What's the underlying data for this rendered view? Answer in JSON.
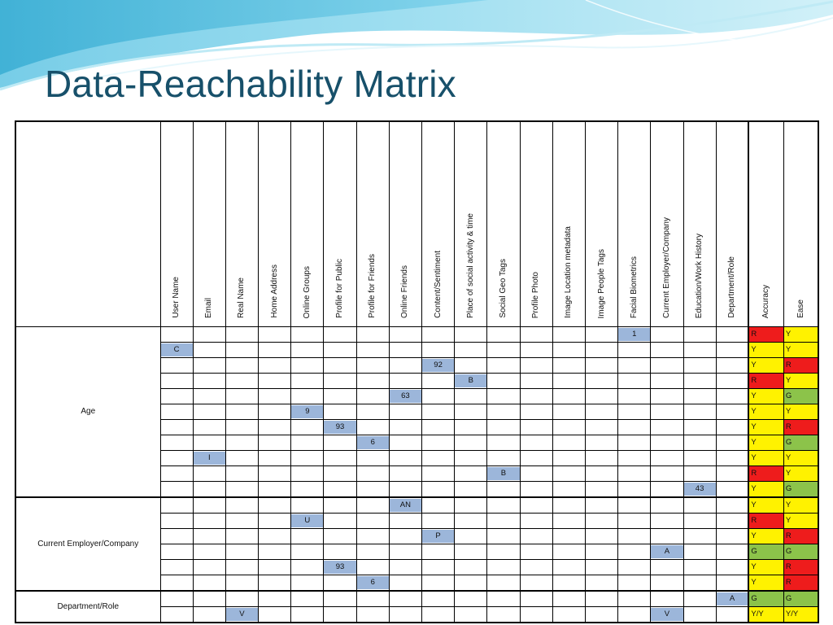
{
  "title": "Data-Reachability Matrix",
  "colors": {
    "title": "#17506a",
    "value_cell": "#9cb6da",
    "R": "#ee1c1c",
    "Y": "#fff200",
    "G": "#8cc34a"
  },
  "columns": [
    "User Name",
    "Email",
    "Real Name",
    "Home Address",
    "Online Groups",
    "Profile for Public",
    "Profile for Friends",
    "Online Friends",
    "Content/Sentiment",
    "Place of social activity & time",
    "Social Geo Tags",
    "Profile Photo",
    "Image Location metadata",
    "Image People Tags",
    "Facial Biometrics",
    "Current Employer/Company",
    "Education/Work History",
    "Department/Role"
  ],
  "rating_headers": [
    "Accuracy",
    "Ease"
  ],
  "groups": [
    {
      "label": "Age",
      "rows": [
        {
          "col": 14,
          "value": "1",
          "accuracy": "R",
          "ease": "Y"
        },
        {
          "col": 0,
          "value": "C",
          "accuracy": "Y",
          "ease": "Y"
        },
        {
          "col": 8,
          "value": "92",
          "accuracy": "Y",
          "ease": "R"
        },
        {
          "col": 9,
          "value": "B",
          "accuracy": "R",
          "ease": "Y"
        },
        {
          "col": 7,
          "value": "63",
          "accuracy": "Y",
          "ease": "G"
        },
        {
          "col": 4,
          "value": "9",
          "accuracy": "Y",
          "ease": "Y"
        },
        {
          "col": 5,
          "value": "93",
          "accuracy": "Y",
          "ease": "R"
        },
        {
          "col": 6,
          "value": "6",
          "accuracy": "Y",
          "ease": "G"
        },
        {
          "col": 1,
          "value": "I",
          "accuracy": "Y",
          "ease": "Y"
        },
        {
          "col": 10,
          "value": "B",
          "accuracy": "R",
          "ease": "Y"
        },
        {
          "col": 16,
          "value": "43",
          "accuracy": "Y",
          "ease": "G"
        }
      ]
    },
    {
      "label": "Current Employer/Company",
      "rows": [
        {
          "col": 7,
          "value": "AN",
          "accuracy": "Y",
          "ease": "Y"
        },
        {
          "col": 4,
          "value": "U",
          "accuracy": "R",
          "ease": "Y"
        },
        {
          "col": 8,
          "value": "P",
          "accuracy": "Y",
          "ease": "R"
        },
        {
          "col": 15,
          "value": "A",
          "accuracy": "G",
          "ease": "G"
        },
        {
          "col": 5,
          "value": "93",
          "accuracy": "Y",
          "ease": "R"
        },
        {
          "col": 6,
          "value": "6",
          "accuracy": "Y",
          "ease": "R"
        }
      ]
    },
    {
      "label": "Department/Role",
      "rows": [
        {
          "col": 17,
          "value": "A",
          "accuracy": "G",
          "ease": "G"
        },
        {
          "cols": [
            2,
            15
          ],
          "value": "V",
          "accuracy": "Y/Y",
          "ease": "Y/Y"
        }
      ]
    }
  ]
}
